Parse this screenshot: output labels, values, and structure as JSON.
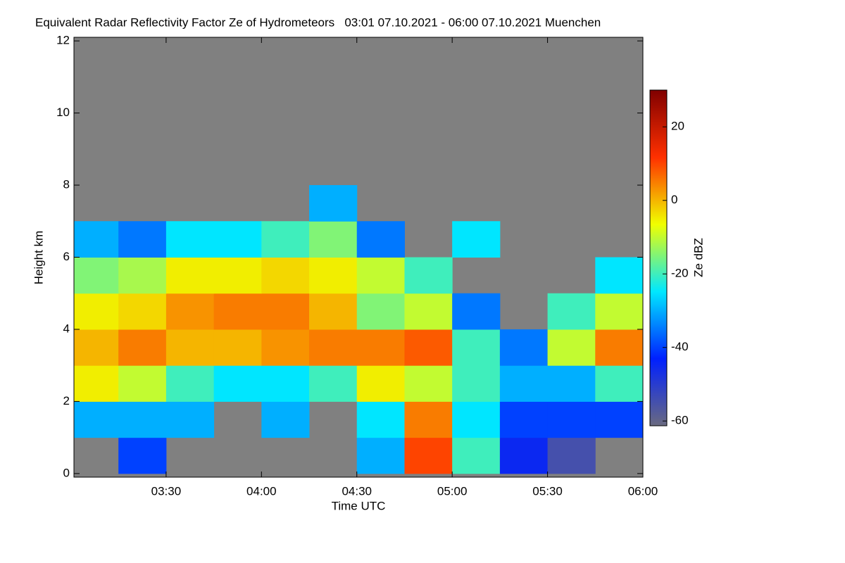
{
  "chart_data": {
    "type": "heatmap",
    "title": "Equivalent Radar Reflectivity Factor Ze of Hydrometeors   03:01 07.10.2021 - 06:00 07.10.2021 Muenchen",
    "x_label": "Time UTC",
    "y_label": "Height km",
    "colorbar_label": "Ze dBZ",
    "xbins": [
      3.0167,
      3.25,
      3.5,
      3.75,
      4.0,
      4.25,
      4.5,
      4.75,
      5.0,
      5.25,
      5.5,
      5.75,
      6.0
    ],
    "ybins": [
      0,
      1,
      2,
      3,
      4,
      5,
      6,
      7,
      8,
      9,
      10,
      11,
      12
    ],
    "values": [
      [
        null,
        -40,
        null,
        null,
        null,
        null,
        -30,
        10,
        -20,
        -45,
        -55,
        null
      ],
      [
        -30,
        -30,
        -30,
        null,
        -30,
        null,
        -25,
        5,
        -25,
        -40,
        -40,
        -40
      ],
      [
        -5,
        -10,
        -20,
        -25,
        -25,
        -20,
        -5,
        -10,
        -20,
        -30,
        -30,
        -20
      ],
      [
        0,
        5,
        0,
        0,
        3,
        5,
        5,
        8,
        -20,
        -35,
        -10,
        5
      ],
      [
        -5,
        -3,
        3,
        5,
        5,
        0,
        -15,
        -10,
        -35,
        null,
        -20,
        -10
      ],
      [
        -15,
        -12,
        -5,
        -5,
        -3,
        -5,
        -10,
        -20,
        null,
        null,
        null,
        -25
      ],
      [
        -30,
        -35,
        -25,
        -25,
        -20,
        -15,
        -35,
        null,
        -25,
        null,
        null,
        null
      ],
      [
        null,
        null,
        null,
        null,
        null,
        -30,
        null,
        null,
        null,
        null,
        null,
        null
      ],
      [
        null,
        null,
        null,
        null,
        null,
        null,
        null,
        null,
        null,
        null,
        null,
        null
      ],
      [
        null,
        null,
        null,
        null,
        null,
        null,
        null,
        null,
        null,
        null,
        null,
        null
      ],
      [
        null,
        null,
        null,
        null,
        null,
        null,
        null,
        null,
        null,
        null,
        null,
        null
      ],
      [
        null,
        null,
        null,
        null,
        null,
        null,
        null,
        null,
        null,
        null,
        null,
        null
      ]
    ],
    "xlim": [
      3.0167,
      6.0
    ],
    "xticks": [
      {
        "value": 3.5,
        "label": "03:30"
      },
      {
        "value": 4.0,
        "label": "04:00"
      },
      {
        "value": 4.5,
        "label": "04:30"
      },
      {
        "value": 5.0,
        "label": "05:00"
      },
      {
        "value": 5.5,
        "label": "05:30"
      },
      {
        "value": 6.0,
        "label": "06:00"
      }
    ],
    "ylim": [
      -0.1,
      12.1
    ],
    "yticks": [
      0,
      2,
      4,
      6,
      8,
      10,
      12
    ],
    "zlim": [
      -61.3,
      30
    ],
    "zticks": [
      -60,
      -40,
      -20,
      0,
      20
    ],
    "background_color": "#808080",
    "colormap": [
      "#6a6a80",
      "#0020ff",
      "#00e8ff",
      "#f0ff00",
      "#ff3000",
      "#800000"
    ]
  }
}
